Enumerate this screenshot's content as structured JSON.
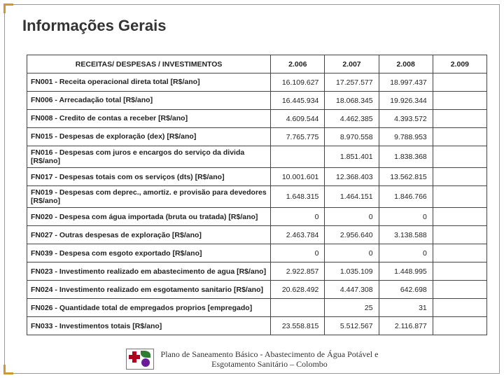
{
  "title": "Informações Gerais",
  "table": {
    "header": {
      "label": "RECEITAS/ DESPESAS / INVESTIMENTOS",
      "years": [
        "2.006",
        "2.007",
        "2.008",
        "2.009"
      ]
    },
    "rows": [
      {
        "label": "FN001 - Receita operacional direta total [R$/ano]",
        "vals": [
          "16.109.627",
          "17.257.577",
          "18.997.437",
          ""
        ]
      },
      {
        "label": "FN006 - Arrecadação total [R$/ano]",
        "vals": [
          "16.445.934",
          "18.068.345",
          "19.926.344",
          ""
        ]
      },
      {
        "label": "FN008 - Credito de contas a receber [R$/ano]",
        "vals": [
          "4.609.544",
          "4.462.385",
          "4.393.572",
          ""
        ]
      },
      {
        "label": "FN015 - Despesas de exploração (dex) [R$/ano]",
        "vals": [
          "7.765.775",
          "8.970.558",
          "9.788.953",
          ""
        ]
      },
      {
        "label": "FN016 - Despesas com juros e encargos do serviço da divida [R$/ano]",
        "vals": [
          "",
          "1.851.401",
          "1.838.368",
          ""
        ]
      },
      {
        "label": "FN017 - Despesas totais com os serviços (dts) [R$/ano]",
        "vals": [
          "10.001.601",
          "12.368.403",
          "13.562.815",
          ""
        ]
      },
      {
        "label": "FN019 - Despesas com deprec., amortiz. e provisão para devedores [R$/ano]",
        "vals": [
          "1.648.315",
          "1.464.151",
          "1.846.766",
          ""
        ]
      },
      {
        "label": "FN020 - Despesa com água importada (bruta ou tratada) [R$/ano]",
        "vals": [
          "0",
          "0",
          "0",
          ""
        ]
      },
      {
        "label": "FN027 - Outras despesas de exploração [R$/ano]",
        "vals": [
          "2.463.784",
          "2.956.640",
          "3.138.588",
          ""
        ]
      },
      {
        "label": "FN039 - Despesa com esgoto exportado [R$/ano]",
        "vals": [
          "0",
          "0",
          "0",
          ""
        ]
      },
      {
        "label": "FN023 - Investimento realizado em abastecimento de agua [R$/ano]",
        "vals": [
          "2.922.857",
          "1.035.109",
          "1.448.995",
          ""
        ]
      },
      {
        "label": "FN024 - Investimento realizado em esgotamento sanitario [R$/ano]",
        "vals": [
          "20.628.492",
          "4.447.308",
          "642.698",
          ""
        ]
      },
      {
        "label": "FN026 - Quantidade total de empregados proprios [empregado]",
        "vals": [
          "",
          "25",
          "31",
          ""
        ]
      },
      {
        "label": "FN033 - Investimentos totais [R$/ano]",
        "vals": [
          "23.558.815",
          "5.512.567",
          "2.116.877",
          ""
        ]
      }
    ]
  },
  "footer": {
    "line1": "Plano de Saneamento Básico - Abastecimento de Água Potável e",
    "line2": "Esgotamento Sanitário – Colombo"
  }
}
